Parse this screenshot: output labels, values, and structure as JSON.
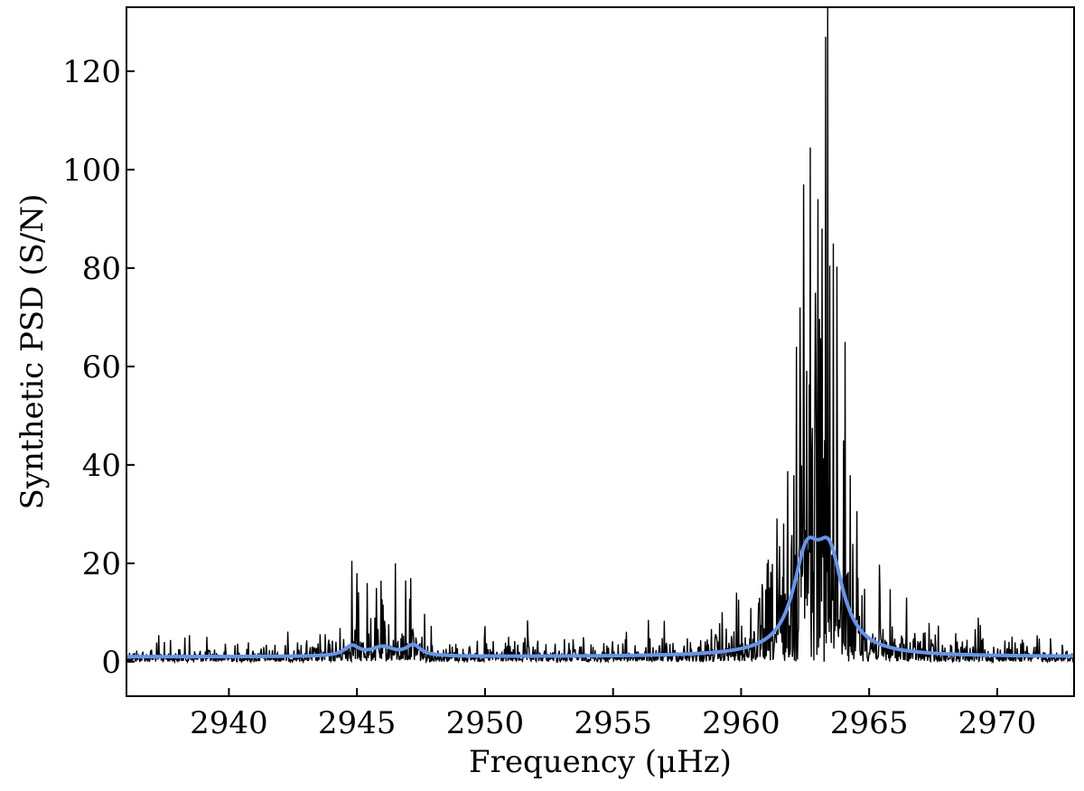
{
  "chart_data": {
    "type": "line",
    "title": "",
    "xlabel": "Frequency (μHz)",
    "ylabel": "Synthetic PSD (S/N)",
    "xlim": [
      2936,
      2973
    ],
    "ylim": [
      -7,
      133
    ],
    "xticks": [
      2940,
      2945,
      2950,
      2955,
      2960,
      2965,
      2970
    ],
    "yticks": [
      0,
      20,
      40,
      60,
      80,
      100,
      120
    ],
    "grid": false,
    "legend": "none",
    "series": [
      {
        "kind": "noisy-spectrum",
        "color": "#000000",
        "sample_step": 0.02,
        "noise": "chi-squared with 2 degrees of freedom, mean = smoothed profile",
        "highlights": [
          {
            "x": 2963.3,
            "y": 127
          },
          {
            "x": 2962.7,
            "y": 104.5
          },
          {
            "x": 2962.45,
            "y": 97
          },
          {
            "x": 2963.0,
            "y": 94
          },
          {
            "x": 2963.15,
            "y": 88
          },
          {
            "x": 2963.6,
            "y": 85
          },
          {
            "x": 2962.3,
            "y": 72
          },
          {
            "x": 2962.9,
            "y": 75
          },
          {
            "x": 2964.05,
            "y": 65
          },
          {
            "x": 2962.15,
            "y": 64
          },
          {
            "x": 2964.0,
            "y": 45
          },
          {
            "x": 2961.5,
            "y": 23.5
          },
          {
            "x": 2944.8,
            "y": 20.5
          },
          {
            "x": 2946.5,
            "y": 20
          },
          {
            "x": 2947.1,
            "y": 17
          },
          {
            "x": 2945.4,
            "y": 16
          },
          {
            "x": 2946.9,
            "y": 16.5
          },
          {
            "x": 2945.0,
            "y": 18
          }
        ]
      },
      {
        "kind": "smoothed-profile",
        "color": "#6495ED",
        "baseline": 1.0,
        "modes": [
          {
            "center": 2944.8,
            "height": 2.0,
            "halfwidth": 0.35
          },
          {
            "center": 2946.0,
            "height": 1.8,
            "halfwidth": 0.55
          },
          {
            "center": 2947.2,
            "height": 2.1,
            "halfwidth": 0.35
          },
          {
            "center": 2962.55,
            "height": 17.6,
            "halfwidth": 0.65
          },
          {
            "center": 2963.45,
            "height": 17.6,
            "halfwidth": 0.65
          }
        ]
      }
    ]
  }
}
